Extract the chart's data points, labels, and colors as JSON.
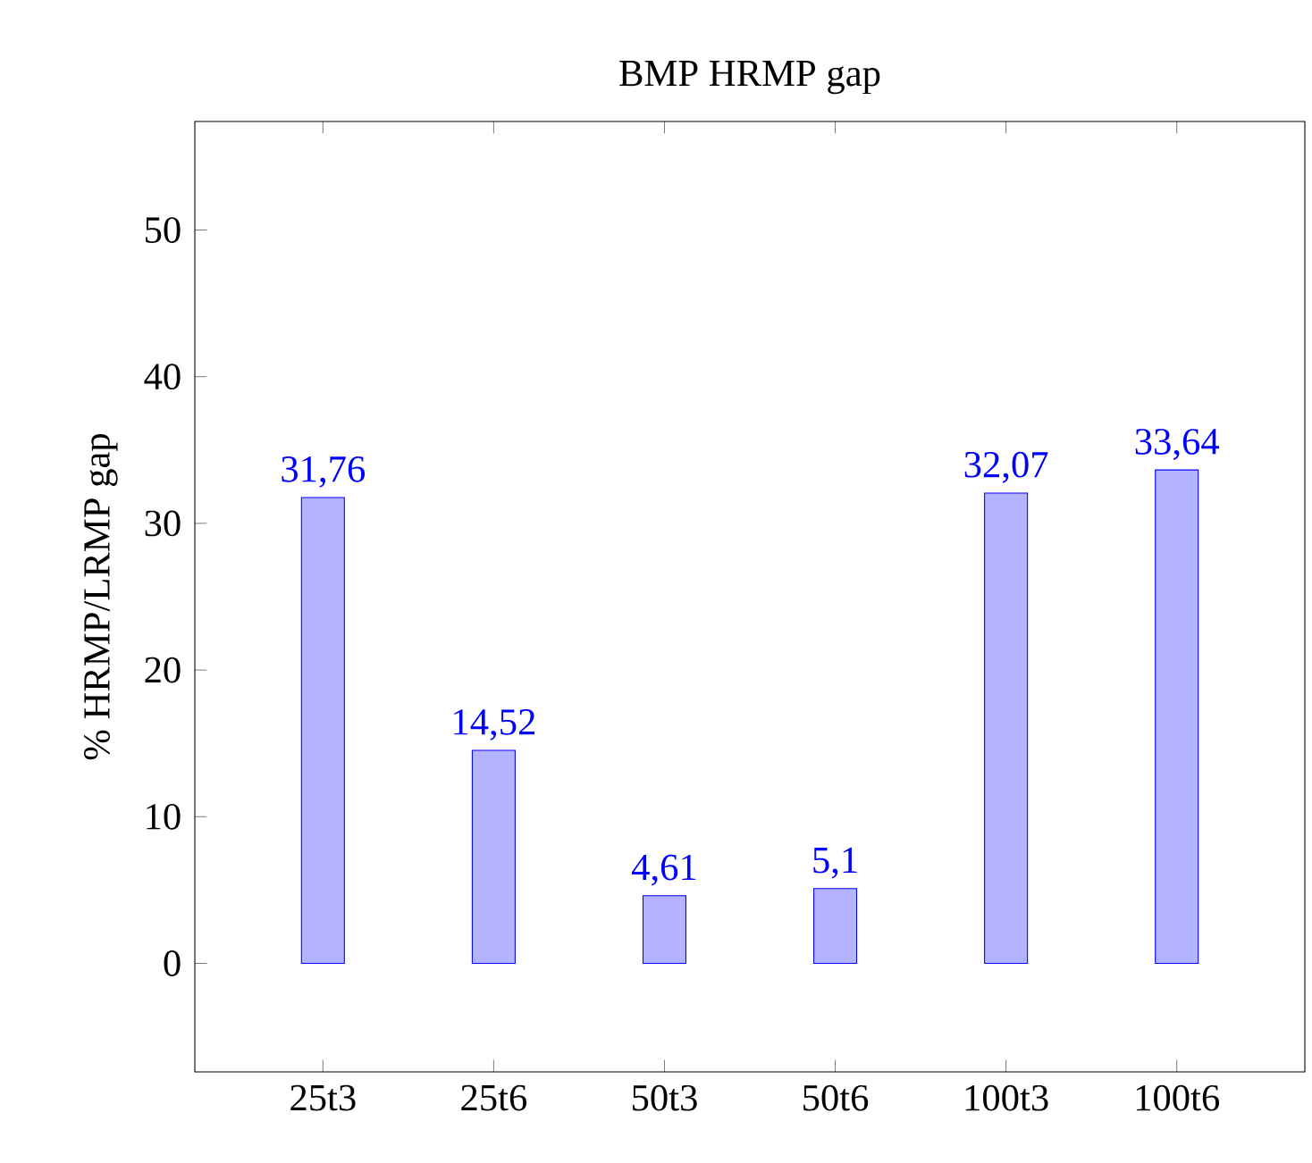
{
  "chart_data": {
    "type": "bar",
    "title": "BMP HRMP gap",
    "ylabel": "% HRMP/LRMP gap",
    "categories": [
      "25t3",
      "25t6",
      "50t3",
      "50t6",
      "100t3",
      "100t6"
    ],
    "values": [
      31.76,
      14.52,
      4.61,
      5.1,
      32.07,
      33.64
    ],
    "value_labels": [
      "31,76",
      "14,52",
      "4,61",
      "5,1",
      "32,07",
      "33,64"
    ],
    "color": "#b3b3ff",
    "ylim": [
      -7.4,
      57.4
    ],
    "yticks": [
      0,
      10,
      20,
      30,
      40,
      50
    ]
  }
}
